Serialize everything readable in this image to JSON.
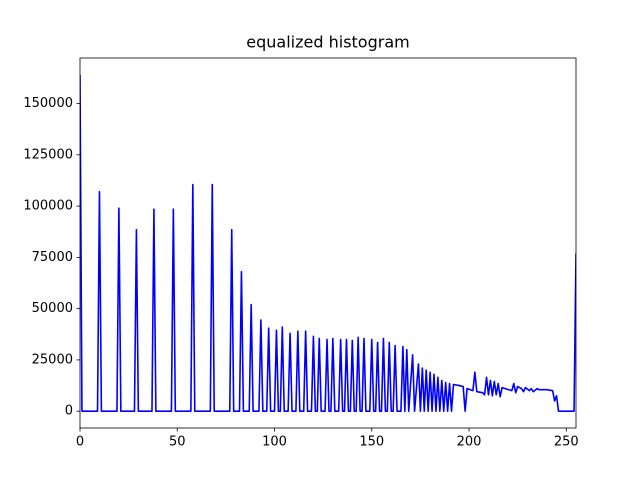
{
  "chart_data": {
    "type": "line",
    "title": "equalized histogram",
    "color": "#0000ff",
    "x": [
      0,
      1,
      9,
      10,
      11,
      19,
      20,
      21,
      28,
      29,
      30,
      37,
      38,
      39,
      47,
      48,
      49,
      57,
      58,
      59,
      67,
      68,
      69,
      77,
      78,
      79,
      82,
      83,
      84,
      87,
      88,
      89,
      92,
      93,
      94,
      96,
      97,
      98,
      100,
      101,
      102,
      103,
      104,
      105,
      107,
      108,
      109,
      111,
      112,
      113,
      115,
      116,
      117,
      119,
      120,
      121,
      122,
      123,
      124,
      126,
      127,
      128,
      129,
      130,
      131,
      133,
      134,
      135,
      136,
      137,
      138,
      139,
      140,
      141,
      142,
      143,
      144,
      145,
      146,
      147,
      149,
      150,
      151,
      152,
      153,
      154,
      155,
      156,
      157,
      158,
      159,
      160,
      161,
      162,
      163,
      165,
      166,
      167,
      168,
      169,
      171,
      172,
      174,
      175,
      176,
      177,
      178,
      179,
      180,
      181,
      182,
      183,
      184,
      185,
      186,
      187,
      188,
      189,
      190,
      191,
      192,
      195,
      197,
      198,
      199,
      202,
      203,
      204,
      207,
      208,
      209,
      210,
      211,
      212,
      213,
      214,
      215,
      216,
      217,
      222,
      223,
      224,
      225,
      227,
      228,
      229,
      231,
      232,
      233,
      235,
      236,
      240,
      243,
      244,
      245,
      246,
      254,
      255
    ],
    "values": [
      164000,
      0,
      0,
      107000,
      0,
      0,
      99000,
      0,
      0,
      88500,
      0,
      0,
      98500,
      0,
      0,
      98500,
      0,
      0,
      110500,
      0,
      0,
      110500,
      0,
      0,
      88500,
      0,
      0,
      68000,
      0,
      0,
      52000,
      0,
      0,
      44500,
      0,
      0,
      40500,
      0,
      0,
      39500,
      0,
      0,
      41000,
      0,
      0,
      38000,
      0,
      0,
      39000,
      0,
      0,
      39000,
      0,
      0,
      36500,
      0,
      0,
      35500,
      0,
      0,
      35000,
      0,
      0,
      35500,
      0,
      0,
      35000,
      0,
      0,
      35000,
      0,
      0,
      34500,
      0,
      0,
      36000,
      0,
      0,
      35500,
      0,
      0,
      35000,
      0,
      0,
      33500,
      0,
      0,
      35500,
      0,
      0,
      33500,
      0,
      0,
      32000,
      0,
      0,
      31500,
      0,
      30000,
      0,
      27500,
      0,
      23000,
      0,
      21000,
      0,
      20000,
      0,
      19000,
      0,
      18000,
      0,
      16500,
      0,
      15000,
      0,
      14000,
      0,
      13500,
      0,
      13000,
      12500,
      12000,
      0,
      11000,
      10000,
      19000,
      9500,
      9000,
      8000,
      16500,
      8000,
      15000,
      7500,
      14500,
      8000,
      13500,
      7000,
      11500,
      10000,
      13500,
      9000,
      12000,
      11000,
      9500,
      11500,
      10000,
      11000,
      9500,
      11000,
      10500,
      10500,
      10000,
      5000,
      7500,
      0,
      0,
      77000
    ],
    "xlim": [
      0,
      255
    ],
    "ylim": [
      -8200,
      172200
    ],
    "xticks": [
      0,
      50,
      100,
      150,
      200,
      250
    ],
    "yticks": [
      0,
      25000,
      50000,
      75000,
      100000,
      125000,
      150000
    ]
  }
}
